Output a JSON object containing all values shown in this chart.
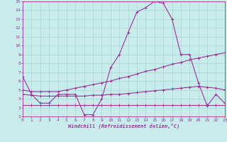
{
  "xlabel": "Windchill (Refroidissement éolien,°C)",
  "xlim": [
    0,
    23
  ],
  "ylim": [
    2,
    15
  ],
  "yticks": [
    2,
    3,
    4,
    5,
    6,
    7,
    8,
    9,
    10,
    11,
    12,
    13,
    14,
    15
  ],
  "xticks": [
    0,
    1,
    2,
    3,
    4,
    5,
    6,
    7,
    8,
    9,
    10,
    11,
    12,
    13,
    14,
    15,
    16,
    17,
    18,
    19,
    20,
    21,
    22,
    23
  ],
  "bg_color": "#c8ecec",
  "grid_color": "#aad4d4",
  "line_color": "#993399",
  "line1_y": [
    6.5,
    4.5,
    3.5,
    3.5,
    4.5,
    4.5,
    4.5,
    2.2,
    2.2,
    4.0,
    7.5,
    9.0,
    11.5,
    13.8,
    14.3,
    15.0,
    14.8,
    13.0,
    9.0,
    9.0,
    5.8,
    3.2,
    4.5,
    3.5
  ],
  "line2_y": [
    3.3,
    3.3,
    3.3,
    3.3,
    3.3,
    3.3,
    3.3,
    3.3,
    3.3,
    3.3,
    3.3,
    3.3,
    3.3,
    3.3,
    3.3,
    3.3,
    3.3,
    3.3,
    3.3,
    3.3,
    3.3,
    3.3,
    3.3,
    3.3
  ],
  "line3_y": [
    5.0,
    4.8,
    4.8,
    4.8,
    4.8,
    5.0,
    5.2,
    5.4,
    5.6,
    5.8,
    6.0,
    6.3,
    6.5,
    6.8,
    7.1,
    7.3,
    7.6,
    7.9,
    8.1,
    8.4,
    8.6,
    8.8,
    9.0,
    9.2
  ],
  "line4_y": [
    4.5,
    4.4,
    4.3,
    4.3,
    4.3,
    4.3,
    4.3,
    4.3,
    4.4,
    4.4,
    4.5,
    4.5,
    4.6,
    4.7,
    4.8,
    4.9,
    5.0,
    5.1,
    5.2,
    5.3,
    5.4,
    5.3,
    5.2,
    5.0
  ]
}
